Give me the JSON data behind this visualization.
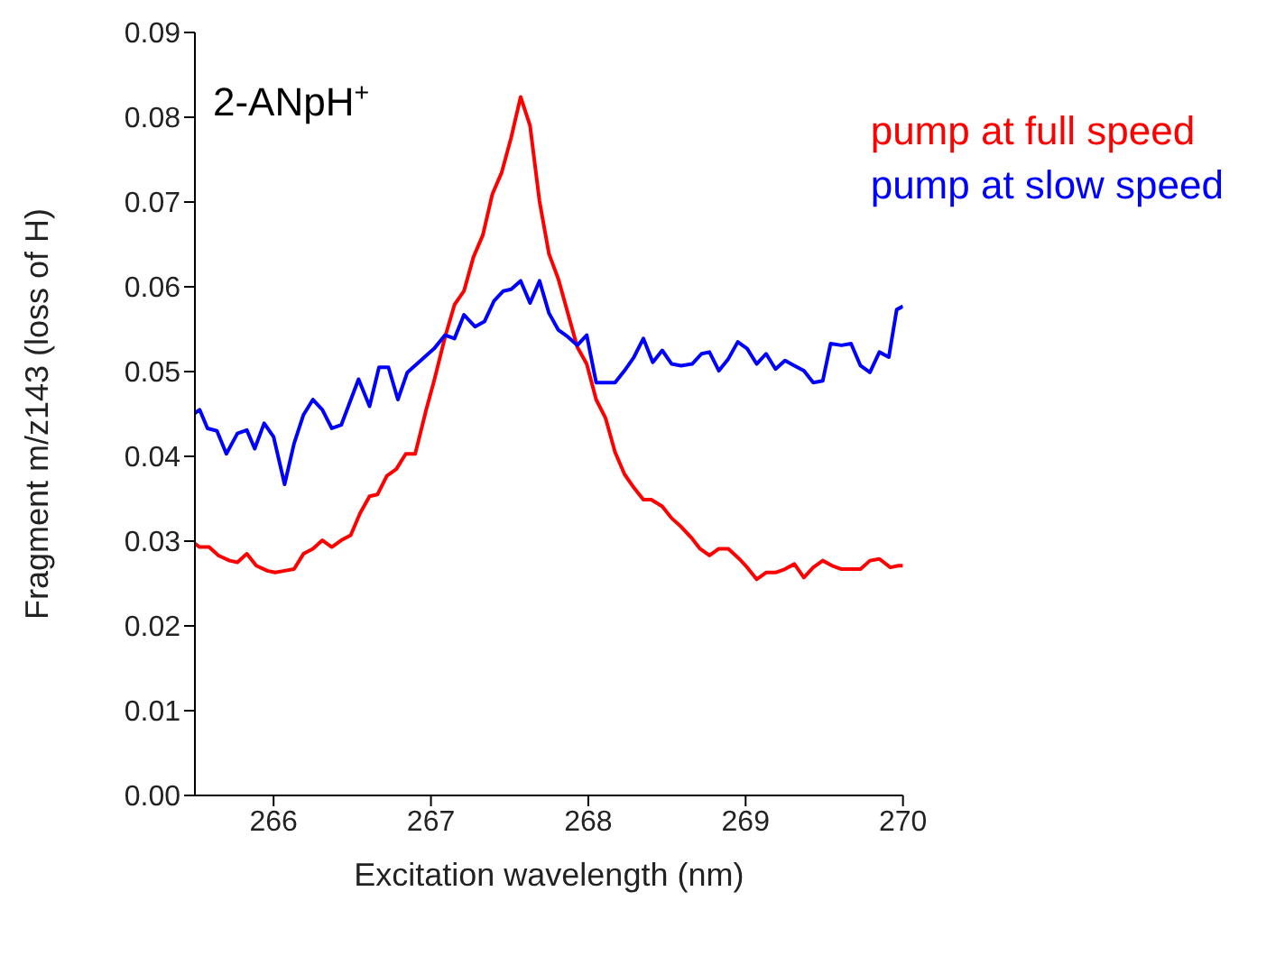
{
  "chart_data": {
    "type": "line",
    "xlabel": "Excitation wavelength (nm)",
    "ylabel": "Fragment m/z143 (loss of H)",
    "annotations": [
      "2-ANpH$^{+}$"
    ],
    "xlim": [
      265.5,
      270
    ],
    "xticks": [
      266,
      267,
      268,
      269,
      270
    ],
    "ylim": [
      0,
      0.09
    ],
    "yticks": [
      {
        "value": 0,
        "label": "0.00"
      },
      {
        "value": 0.01,
        "label": "0.01"
      },
      {
        "value": 0.02,
        "label": "0.02"
      },
      {
        "value": 0.03,
        "label": "0.03"
      },
      {
        "value": 0.04,
        "label": "0.04"
      },
      {
        "value": 0.05,
        "label": "0.05"
      },
      {
        "value": 0.06,
        "label": "0.06"
      },
      {
        "value": 0.07,
        "label": "0.07"
      },
      {
        "value": 0.08,
        "label": "0.08"
      },
      {
        "value": 0.09,
        "label": "0.09"
      }
    ],
    "grid": false,
    "legend": "top right",
    "marker": "none",
    "line_style": "solid",
    "series": [
      {
        "name": "pump at full speed",
        "color": "#ff0000",
        "x": [
          265.5,
          265.53,
          265.59,
          265.65,
          265.72,
          265.77,
          265.83,
          265.89,
          265.96,
          266.01,
          266.07,
          266.13,
          266.19,
          266.25,
          266.31,
          266.37,
          266.43,
          266.49,
          266.55,
          266.61,
          266.66,
          266.72,
          266.78,
          266.84,
          266.9,
          266.97,
          267.02,
          267.09,
          267.15,
          267.21,
          267.27,
          267.33,
          267.39,
          267.45,
          267.51,
          267.57,
          267.63,
          267.69,
          267.75,
          267.81,
          267.87,
          267.93,
          267.99,
          268.05,
          268.11,
          268.17,
          268.23,
          268.29,
          268.35,
          268.4,
          268.47,
          268.53,
          268.59,
          268.66,
          268.71,
          268.77,
          268.83,
          268.89,
          268.96,
          269.01,
          269.07,
          269.13,
          269.19,
          269.25,
          269.31,
          269.37,
          269.43,
          269.49,
          269.55,
          269.61,
          269.73,
          269.79,
          269.85,
          269.92,
          269.97,
          270
        ],
        "values": [
          0.0297,
          0.0293,
          0.0293,
          0.0283,
          0.0277,
          0.0275,
          0.0285,
          0.0271,
          0.0265,
          0.0263,
          0.0265,
          0.0267,
          0.0285,
          0.0291,
          0.0301,
          0.0293,
          0.0301,
          0.0307,
          0.0333,
          0.0353,
          0.0355,
          0.0377,
          0.0385,
          0.0403,
          0.0403,
          0.0455,
          0.0489,
          0.0541,
          0.0579,
          0.0595,
          0.0635,
          0.0661,
          0.0709,
          0.0735,
          0.0776,
          0.0824,
          0.079,
          0.0701,
          0.0639,
          0.0609,
          0.0569,
          0.0529,
          0.0509,
          0.0467,
          0.0445,
          0.0405,
          0.0379,
          0.0363,
          0.0349,
          0.0349,
          0.0341,
          0.0327,
          0.0317,
          0.0303,
          0.0291,
          0.0283,
          0.0291,
          0.0291,
          0.0279,
          0.0269,
          0.0255,
          0.0263,
          0.0263,
          0.0267,
          0.0273,
          0.0257,
          0.0269,
          0.0277,
          0.0271,
          0.0267,
          0.0267,
          0.0277,
          0.0279,
          0.0269,
          0.0271,
          0.0271
        ]
      },
      {
        "name": "pump at slow speed",
        "color": "#0000ff",
        "x": [
          265.5,
          265.53,
          265.58,
          265.64,
          265.7,
          265.77,
          265.83,
          265.88,
          265.94,
          266,
          266.07,
          266.13,
          266.19,
          266.25,
          266.31,
          266.37,
          266.43,
          266.54,
          266.61,
          266.67,
          266.73,
          266.79,
          266.85,
          267.02,
          267.09,
          267.15,
          267.21,
          267.28,
          267.34,
          267.4,
          267.46,
          267.51,
          267.57,
          267.63,
          267.69,
          267.75,
          267.81,
          267.87,
          267.93,
          267.99,
          268.05,
          268.17,
          268.23,
          268.29,
          268.35,
          268.41,
          268.47,
          268.53,
          268.59,
          268.66,
          268.72,
          268.77,
          268.83,
          268.89,
          268.95,
          269.01,
          269.07,
          269.13,
          269.19,
          269.25,
          269.31,
          269.37,
          269.43,
          269.49,
          269.54,
          269.61,
          269.67,
          269.73,
          269.79,
          269.85,
          269.91,
          269.96,
          270
        ],
        "values": [
          0.0451,
          0.0455,
          0.0433,
          0.043,
          0.0403,
          0.0427,
          0.0431,
          0.0409,
          0.0439,
          0.0423,
          0.0367,
          0.0415,
          0.0449,
          0.0467,
          0.0455,
          0.0433,
          0.0437,
          0.0491,
          0.0459,
          0.0505,
          0.0505,
          0.0467,
          0.0499,
          0.0527,
          0.0543,
          0.0539,
          0.0567,
          0.0553,
          0.0559,
          0.0583,
          0.0595,
          0.0597,
          0.0607,
          0.0581,
          0.0607,
          0.0569,
          0.0549,
          0.0541,
          0.0531,
          0.0543,
          0.0487,
          0.0487,
          0.0501,
          0.0517,
          0.0539,
          0.0511,
          0.0525,
          0.0509,
          0.0507,
          0.0509,
          0.0521,
          0.0523,
          0.0501,
          0.0515,
          0.0535,
          0.0527,
          0.0509,
          0.0521,
          0.0503,
          0.0513,
          0.0507,
          0.0501,
          0.0487,
          0.0489,
          0.0533,
          0.0531,
          0.0533,
          0.0507,
          0.0499,
          0.0523,
          0.0517,
          0.0573,
          0.0577
        ]
      }
    ]
  }
}
